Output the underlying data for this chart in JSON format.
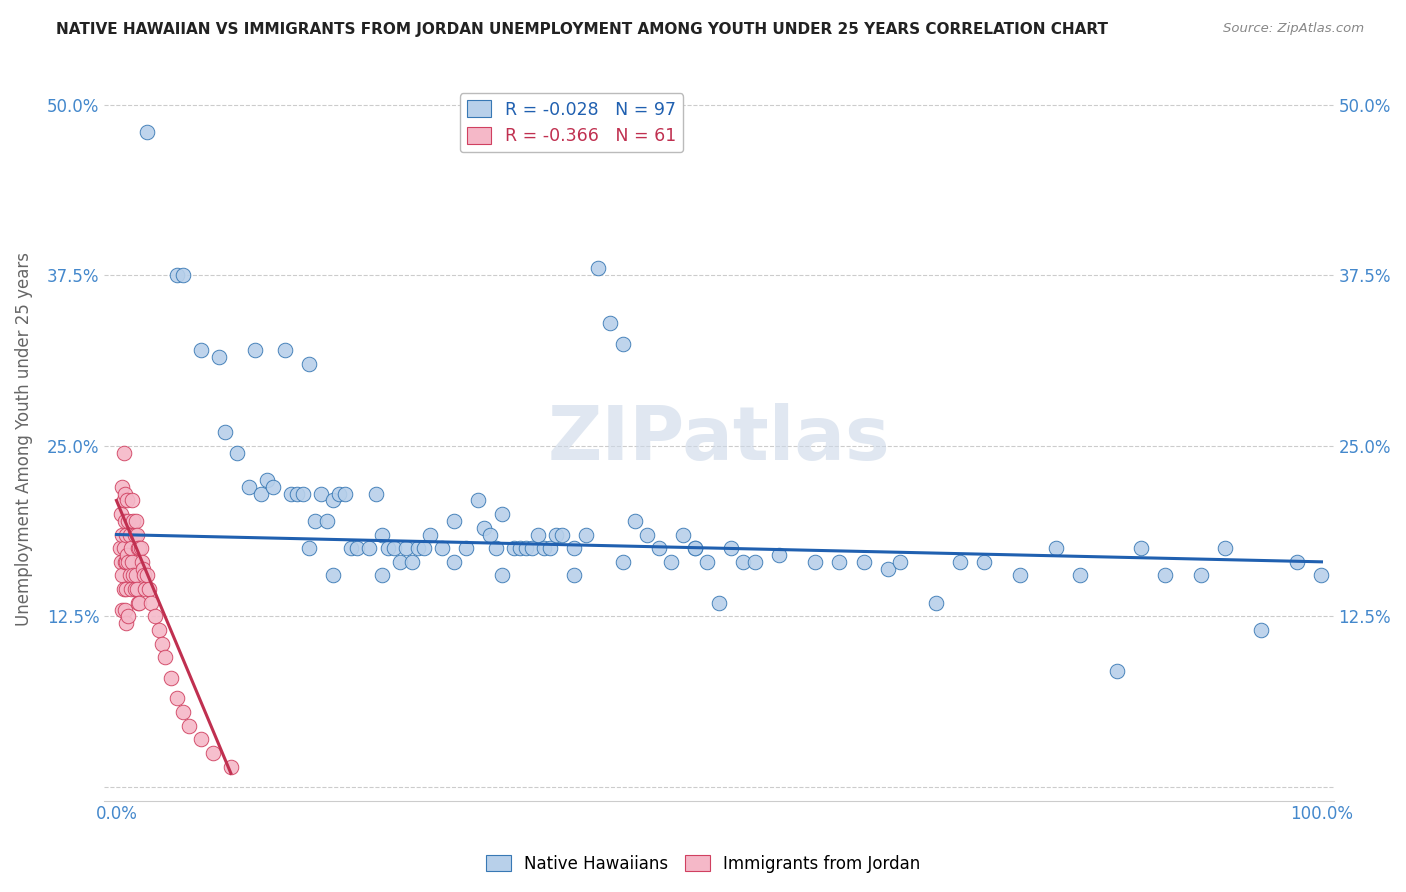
{
  "title": "NATIVE HAWAIIAN VS IMMIGRANTS FROM JORDAN UNEMPLOYMENT AMONG YOUTH UNDER 25 YEARS CORRELATION CHART",
  "source": "Source: ZipAtlas.com",
  "ylabel": "Unemployment Among Youth under 25 years",
  "xlim": [
    -0.01,
    1.01
  ],
  "ylim": [
    -0.01,
    0.52
  ],
  "xticks": [
    0.0,
    0.25,
    0.5,
    0.75,
    1.0
  ],
  "xtick_labels": [
    "0.0%",
    "",
    "",
    "",
    "100.0%"
  ],
  "yticks": [
    0.0,
    0.125,
    0.25,
    0.375,
    0.5
  ],
  "ytick_labels": [
    "",
    "12.5%",
    "25.0%",
    "37.5%",
    "50.0%"
  ],
  "legend_line1": "R = -0.028   N = 97",
  "legend_line2": "R = -0.366   N = 61",
  "blue_face": "#b8d0ea",
  "blue_edge": "#3878b4",
  "pink_face": "#f5b8c8",
  "pink_edge": "#d04060",
  "trend_blue_color": "#2060b0",
  "trend_pink_color": "#c03050",
  "tick_color": "#4488cc",
  "axis_label_color": "#666666",
  "title_color": "#222222",
  "source_color": "#888888",
  "watermark_text": "ZIPatlas",
  "watermark_color": "#ccd8e8",
  "grid_color": "#cccccc",
  "blue_x": [
    0.025,
    0.05,
    0.055,
    0.07,
    0.085,
    0.09,
    0.1,
    0.11,
    0.115,
    0.12,
    0.125,
    0.13,
    0.14,
    0.145,
    0.15,
    0.155,
    0.16,
    0.165,
    0.17,
    0.175,
    0.18,
    0.185,
    0.19,
    0.195,
    0.2,
    0.21,
    0.215,
    0.22,
    0.225,
    0.23,
    0.235,
    0.24,
    0.245,
    0.25,
    0.255,
    0.26,
    0.27,
    0.28,
    0.29,
    0.3,
    0.305,
    0.31,
    0.315,
    0.32,
    0.33,
    0.335,
    0.34,
    0.345,
    0.35,
    0.355,
    0.36,
    0.365,
    0.37,
    0.38,
    0.39,
    0.4,
    0.41,
    0.42,
    0.43,
    0.44,
    0.45,
    0.46,
    0.47,
    0.48,
    0.49,
    0.5,
    0.51,
    0.52,
    0.53,
    0.55,
    0.58,
    0.6,
    0.62,
    0.64,
    0.65,
    0.68,
    0.7,
    0.72,
    0.75,
    0.78,
    0.8,
    0.83,
    0.85,
    0.87,
    0.9,
    0.92,
    0.95,
    0.98,
    1.0,
    0.16,
    0.18,
    0.22,
    0.28,
    0.32,
    0.38,
    0.42,
    0.48
  ],
  "blue_y": [
    0.48,
    0.375,
    0.375,
    0.32,
    0.315,
    0.26,
    0.245,
    0.22,
    0.32,
    0.215,
    0.225,
    0.22,
    0.32,
    0.215,
    0.215,
    0.215,
    0.31,
    0.195,
    0.215,
    0.195,
    0.21,
    0.215,
    0.215,
    0.175,
    0.175,
    0.175,
    0.215,
    0.185,
    0.175,
    0.175,
    0.165,
    0.175,
    0.165,
    0.175,
    0.175,
    0.185,
    0.175,
    0.195,
    0.175,
    0.21,
    0.19,
    0.185,
    0.175,
    0.2,
    0.175,
    0.175,
    0.175,
    0.175,
    0.185,
    0.175,
    0.175,
    0.185,
    0.185,
    0.175,
    0.185,
    0.38,
    0.34,
    0.325,
    0.195,
    0.185,
    0.175,
    0.165,
    0.185,
    0.175,
    0.165,
    0.135,
    0.175,
    0.165,
    0.165,
    0.17,
    0.165,
    0.165,
    0.165,
    0.16,
    0.165,
    0.135,
    0.165,
    0.165,
    0.155,
    0.175,
    0.155,
    0.085,
    0.175,
    0.155,
    0.155,
    0.175,
    0.115,
    0.165,
    0.155,
    0.175,
    0.155,
    0.155,
    0.165,
    0.155,
    0.155,
    0.165,
    0.175
  ],
  "pink_x": [
    0.003,
    0.004,
    0.004,
    0.005,
    0.005,
    0.005,
    0.005,
    0.006,
    0.006,
    0.006,
    0.006,
    0.007,
    0.007,
    0.007,
    0.007,
    0.008,
    0.008,
    0.008,
    0.008,
    0.009,
    0.009,
    0.01,
    0.01,
    0.01,
    0.011,
    0.011,
    0.012,
    0.012,
    0.013,
    0.013,
    0.014,
    0.014,
    0.015,
    0.015,
    0.016,
    0.016,
    0.017,
    0.017,
    0.018,
    0.018,
    0.019,
    0.019,
    0.02,
    0.021,
    0.022,
    0.023,
    0.024,
    0.025,
    0.027,
    0.029,
    0.032,
    0.035,
    0.038,
    0.04,
    0.045,
    0.05,
    0.055,
    0.06,
    0.07,
    0.08,
    0.095
  ],
  "pink_y": [
    0.175,
    0.2,
    0.165,
    0.22,
    0.185,
    0.155,
    0.13,
    0.245,
    0.21,
    0.175,
    0.145,
    0.215,
    0.195,
    0.165,
    0.13,
    0.185,
    0.165,
    0.145,
    0.12,
    0.21,
    0.17,
    0.195,
    0.165,
    0.125,
    0.185,
    0.155,
    0.175,
    0.145,
    0.21,
    0.165,
    0.195,
    0.155,
    0.185,
    0.145,
    0.195,
    0.155,
    0.185,
    0.145,
    0.175,
    0.135,
    0.175,
    0.135,
    0.175,
    0.165,
    0.16,
    0.155,
    0.145,
    0.155,
    0.145,
    0.135,
    0.125,
    0.115,
    0.105,
    0.095,
    0.08,
    0.065,
    0.055,
    0.045,
    0.035,
    0.025,
    0.015
  ],
  "blue_trend_x": [
    0.0,
    1.0
  ],
  "blue_trend_y": [
    0.185,
    0.165
  ],
  "pink_trend_x": [
    0.0,
    0.095
  ],
  "pink_trend_y": [
    0.21,
    0.01
  ]
}
